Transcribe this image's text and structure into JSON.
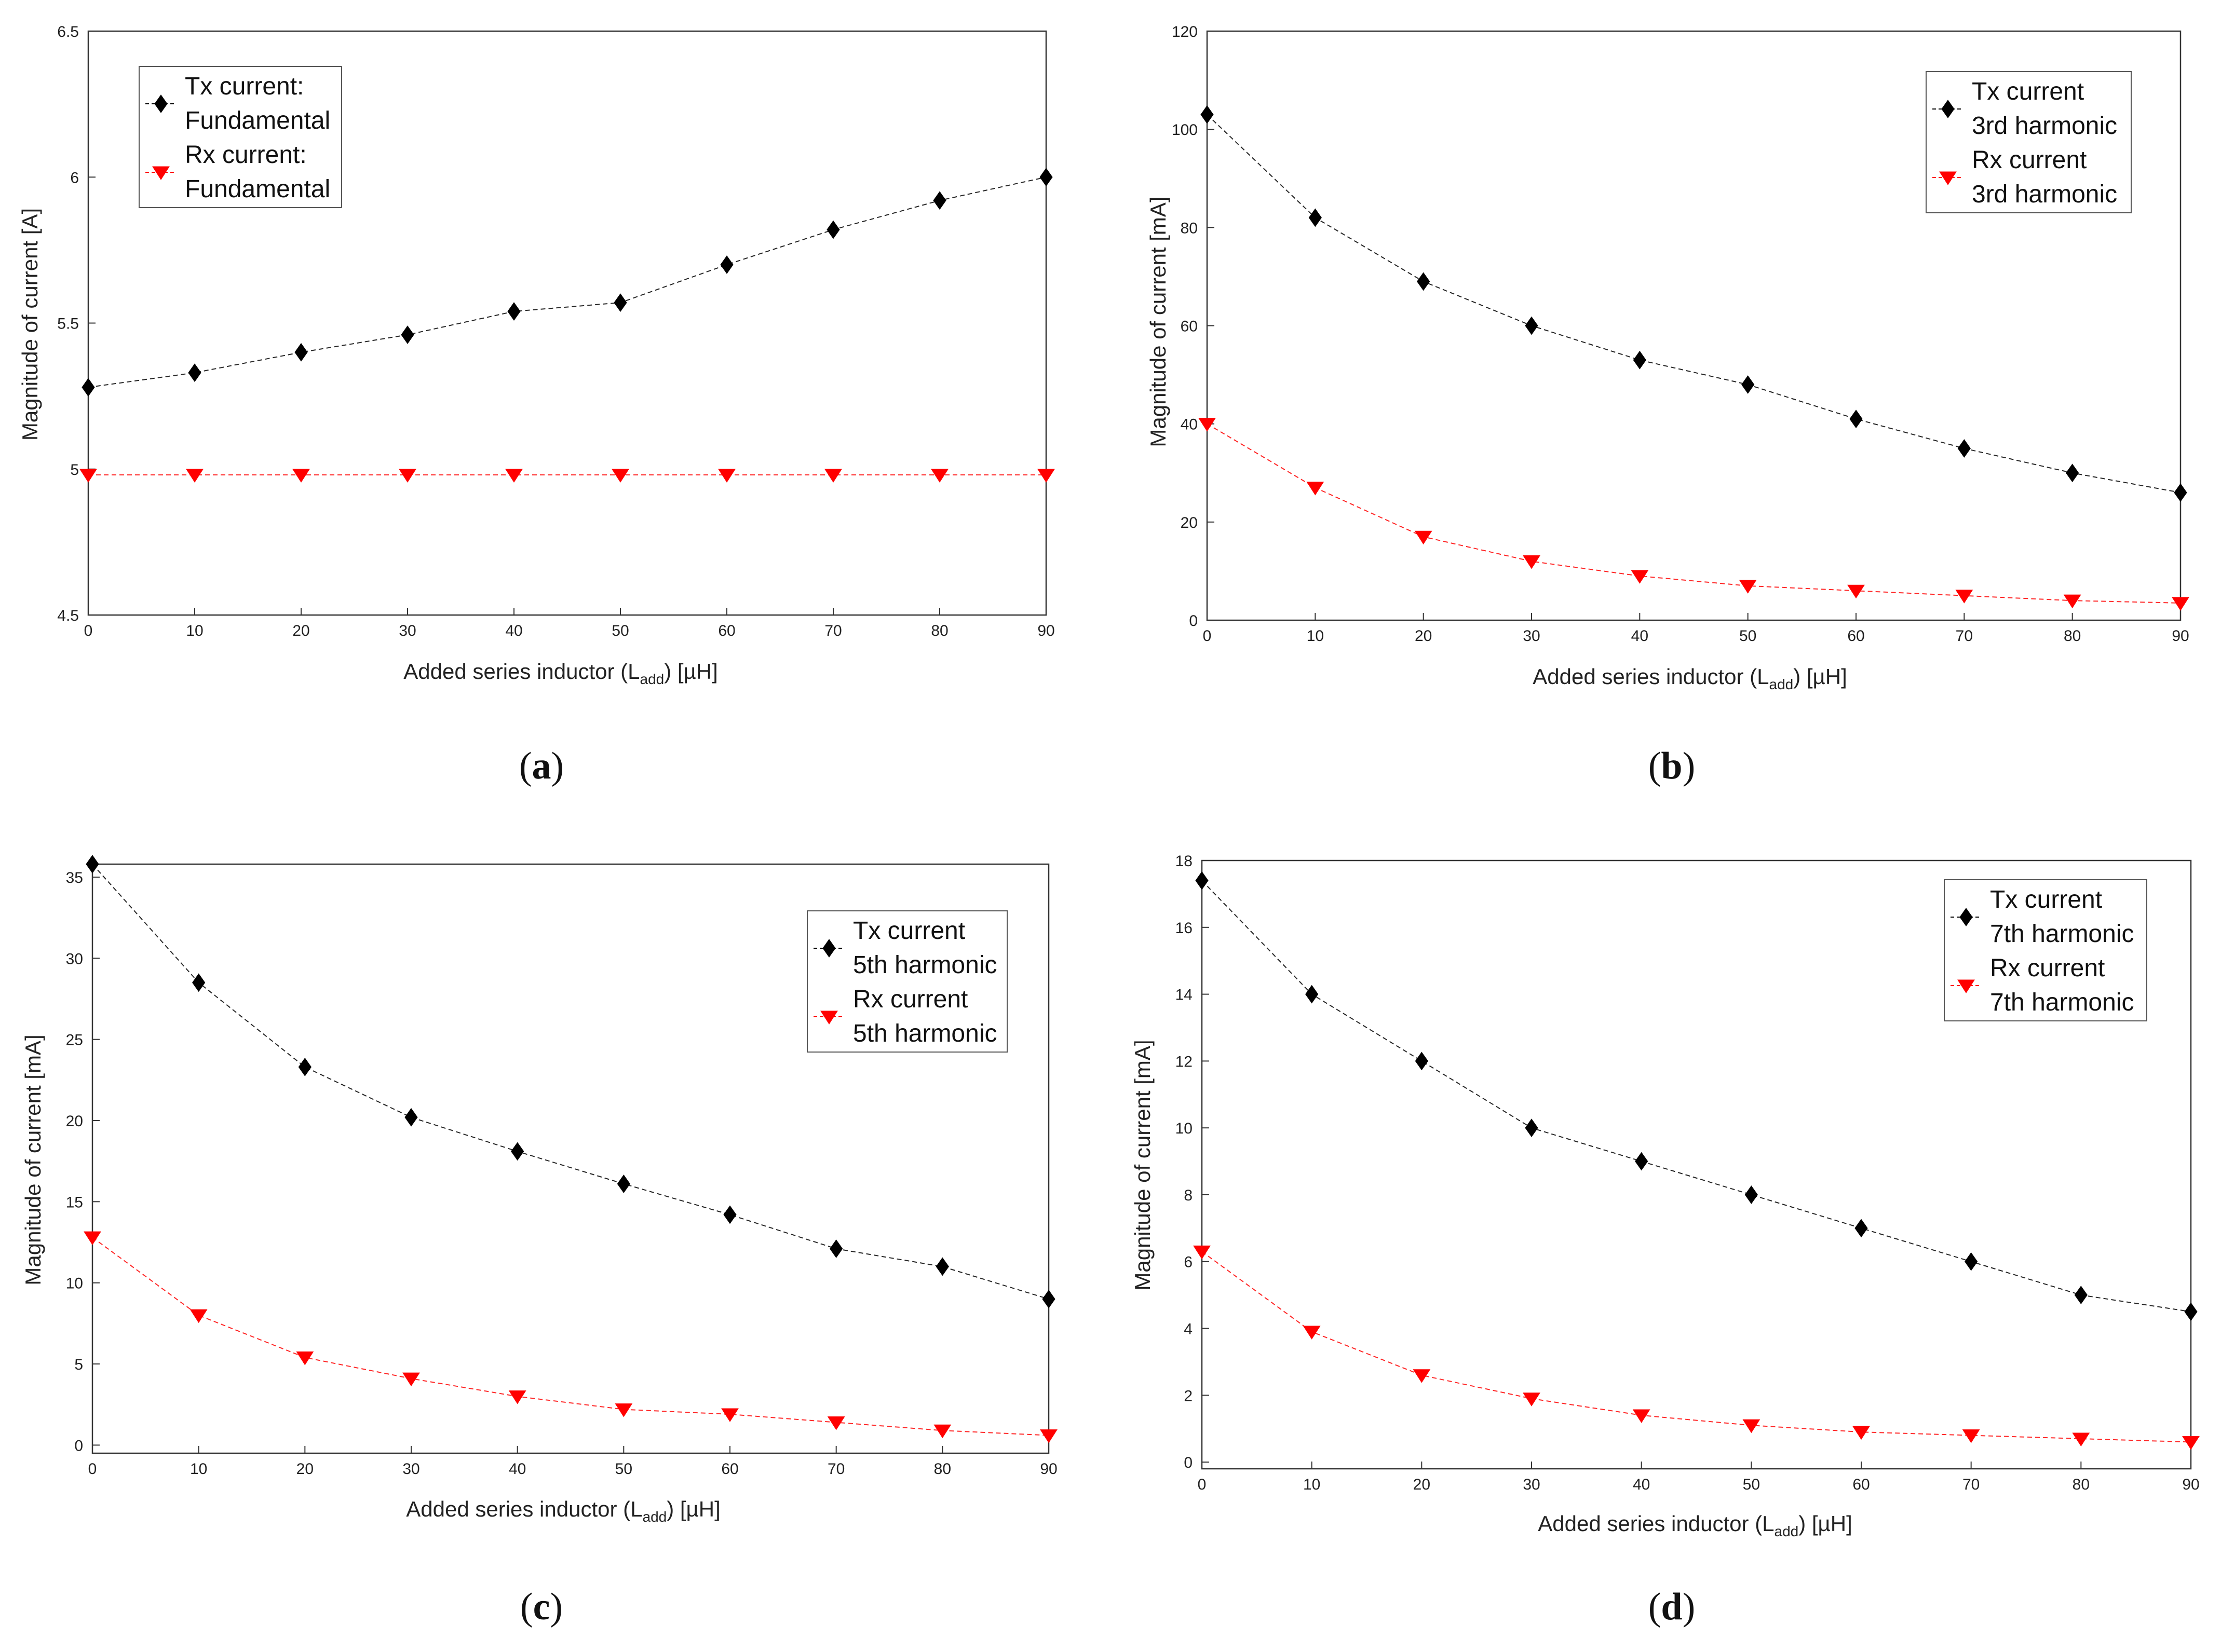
{
  "chart_data": [
    {
      "id": "a",
      "type": "line",
      "caption_letter": "a",
      "xlabel_main": "Added series inductor (L",
      "xlabel_sub": "add",
      "xlabel_tail": ") [µH]",
      "ylabel": "Magnitude of current [A]",
      "x": [
        0,
        10,
        20,
        30,
        40,
        50,
        60,
        70,
        80,
        90
      ],
      "xticks": [
        "0",
        "10",
        "20",
        "30",
        "40",
        "50",
        "60",
        "70",
        "80",
        "90"
      ],
      "xlim": [
        0,
        90
      ],
      "ylim": [
        4.5,
        6.5
      ],
      "yticks": [
        4.5,
        5,
        5.5,
        6,
        6.5
      ],
      "yticklabels": [
        "4.5",
        "5",
        "5.5",
        "6",
        "6.5"
      ],
      "legend_position": "top-left",
      "series": [
        {
          "name_line1": "Tx current:",
          "name_line2": "Fundamental",
          "color": "#000000",
          "marker": "diamond",
          "values": [
            5.28,
            5.33,
            5.4,
            5.46,
            5.54,
            5.57,
            5.7,
            5.82,
            5.92,
            6.0
          ]
        },
        {
          "name_line1": "Rx current:",
          "name_line2": "Fundamental",
          "color": "#ff0000",
          "marker": "triangle-down",
          "values": [
            4.98,
            4.98,
            4.98,
            4.98,
            4.98,
            4.98,
            4.98,
            4.98,
            4.98,
            4.98
          ]
        }
      ]
    },
    {
      "id": "b",
      "type": "line",
      "caption_letter": "b",
      "xlabel_main": "Added series inductor (L",
      "xlabel_sub": "add",
      "xlabel_tail": ") [µH]",
      "ylabel": "Magnitude of current [mA]",
      "x": [
        0,
        10,
        20,
        30,
        40,
        50,
        60,
        70,
        80,
        90
      ],
      "xticks": [
        "0",
        "10",
        "20",
        "30",
        "40",
        "50",
        "60",
        "70",
        "80",
        "90"
      ],
      "xlim": [
        0,
        90
      ],
      "ylim": [
        0,
        120
      ],
      "yticks": [
        0,
        20,
        40,
        60,
        80,
        100,
        120
      ],
      "yticklabels": [
        "0",
        "20",
        "40",
        "60",
        "80",
        "100",
        "120"
      ],
      "legend_position": "top-right",
      "series": [
        {
          "name_line1": "Tx current",
          "name_line2": "3rd harmonic",
          "color": "#000000",
          "marker": "diamond",
          "values": [
            103,
            82,
            69,
            60,
            53,
            48,
            41,
            35,
            30,
            26
          ]
        },
        {
          "name_line1": "Rx current",
          "name_line2": "3rd harmonic",
          "color": "#ff0000",
          "marker": "triangle-down",
          "values": [
            40,
            27,
            17,
            12,
            9,
            7,
            6,
            5,
            4,
            3.5
          ]
        }
      ]
    },
    {
      "id": "c",
      "type": "line",
      "caption_letter": "c",
      "xlabel_main": "Added series inductor (L",
      "xlabel_sub": "add",
      "xlabel_tail": ") [µH]",
      "ylabel": "Magnitude of current [mA]",
      "x": [
        0,
        10,
        20,
        30,
        40,
        50,
        60,
        70,
        80,
        90
      ],
      "xticks": [
        "0",
        "10",
        "20",
        "30",
        "40",
        "50",
        "60",
        "70",
        "80",
        "90"
      ],
      "xlim": [
        0,
        90
      ],
      "ylim": [
        -0.5,
        35.8
      ],
      "yticks": [
        0,
        5,
        10,
        15,
        20,
        25,
        30,
        35
      ],
      "yticklabels": [
        "0",
        "5",
        "10",
        "15",
        "20",
        "25",
        "30",
        "35"
      ],
      "legend_position": "top-right",
      "series": [
        {
          "name_line1": "Tx current",
          "name_line2": "5th harmonic",
          "color": "#000000",
          "marker": "diamond",
          "values": [
            35.8,
            28.5,
            23.3,
            20.2,
            18.1,
            16.1,
            14.2,
            12.1,
            11.0,
            9.0
          ]
        },
        {
          "name_line1": "Rx current",
          "name_line2": "5th harmonic",
          "color": "#ff0000",
          "marker": "triangle-down",
          "values": [
            12.8,
            8.0,
            5.4,
            4.1,
            3.0,
            2.2,
            1.9,
            1.4,
            0.9,
            0.6
          ]
        }
      ]
    },
    {
      "id": "d",
      "type": "line",
      "caption_letter": "d",
      "xlabel_main": "Added series inductor (L",
      "xlabel_sub": "add",
      "xlabel_tail": ") [µH]",
      "ylabel": "Magnitude of current [mA]",
      "x": [
        0,
        10,
        20,
        30,
        40,
        50,
        60,
        70,
        80,
        90
      ],
      "xticks": [
        "0",
        "10",
        "20",
        "30",
        "40",
        "50",
        "60",
        "70",
        "80",
        "90"
      ],
      "xlim": [
        0,
        90
      ],
      "ylim": [
        -0.2,
        18
      ],
      "yticks": [
        0,
        2,
        4,
        6,
        8,
        10,
        12,
        14,
        16,
        18
      ],
      "yticklabels": [
        "0",
        "2",
        "4",
        "6",
        "8",
        "10",
        "12",
        "14",
        "16",
        "18"
      ],
      "legend_position": "top-right",
      "series": [
        {
          "name_line1": "Tx current",
          "name_line2": "7th harmonic",
          "color": "#000000",
          "marker": "diamond",
          "values": [
            17.4,
            14.0,
            12.0,
            10.0,
            9.0,
            8.0,
            7.0,
            6.0,
            5.0,
            4.5
          ]
        },
        {
          "name_line1": "Rx current",
          "name_line2": "7th harmonic",
          "color": "#ff0000",
          "marker": "triangle-down",
          "values": [
            6.3,
            3.9,
            2.6,
            1.9,
            1.4,
            1.1,
            0.9,
            0.8,
            0.7,
            0.6
          ]
        }
      ]
    }
  ]
}
